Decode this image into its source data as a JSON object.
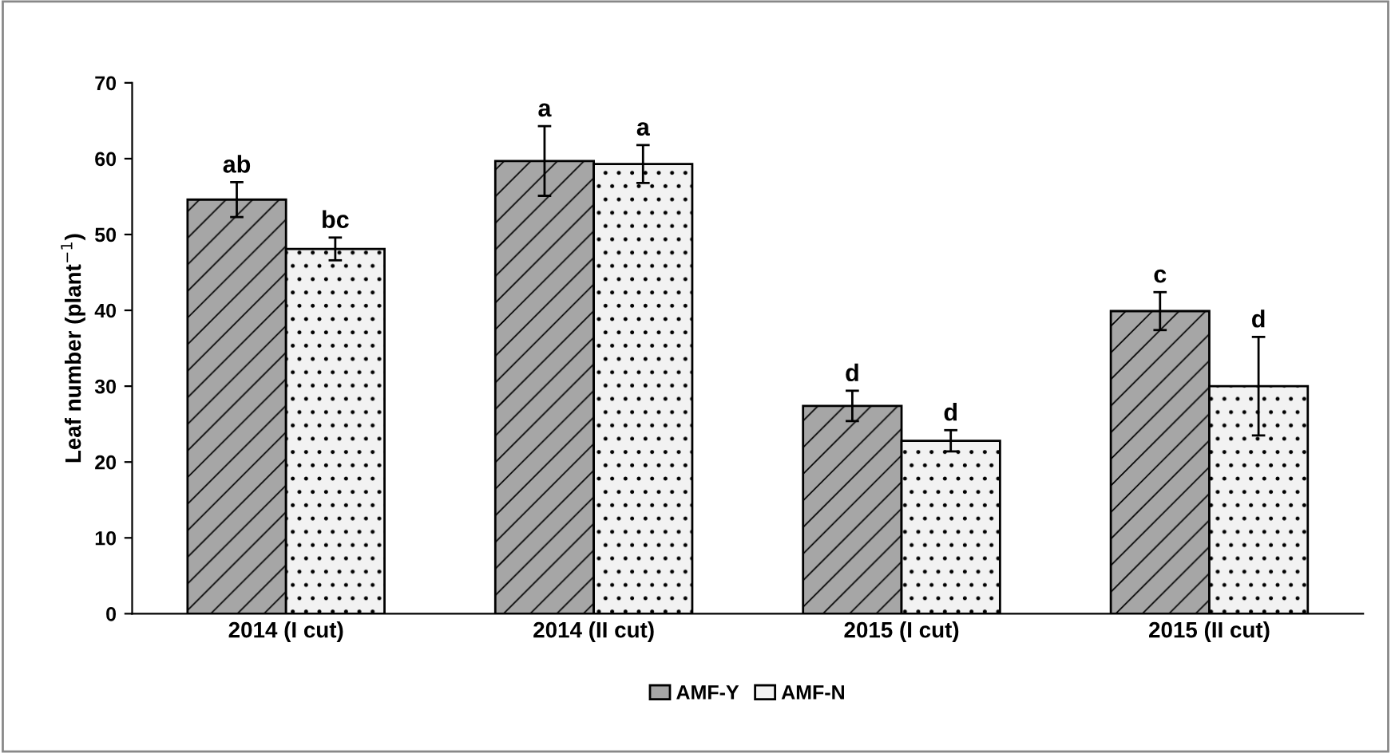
{
  "chart_data": {
    "type": "bar",
    "ylabel": "Leaf number (plant$^{−1}$)",
    "categories": [
      "2014 (I cut)",
      "2014 (II cut)",
      "2015 (I cut)",
      "2015 (II cut)"
    ],
    "series": [
      {
        "name": "AMF-Y",
        "color": "#a6a6a6",
        "values": [
          54.6,
          59.7,
          27.4,
          39.9
        ],
        "errors": [
          2.3,
          4.6,
          2.0,
          2.5
        ]
      },
      {
        "name": "AMF-N",
        "color": "#f2f2f2",
        "values": [
          48.1,
          59.3,
          22.8,
          30.0
        ],
        "errors": [
          1.5,
          2.5,
          1.4,
          6.5
        ]
      }
    ],
    "ylim": [
      0,
      70
    ],
    "yticks": [
      0,
      10,
      20,
      30,
      40,
      50,
      60,
      70
    ],
    "grid": false,
    "legend": "bottom",
    "annotations": [
      "ab",
      "bc",
      "a",
      "a",
      "d",
      "d",
      "c",
      "d"
    ]
  }
}
